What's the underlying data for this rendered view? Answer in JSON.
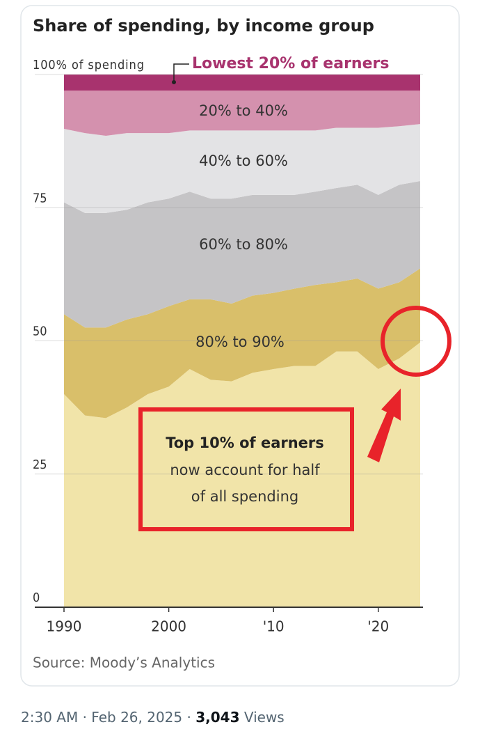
{
  "chart_data": {
    "type": "stacked-area",
    "title": "Share of spending, by income group",
    "source": "Source: Moody’s Analytics",
    "x": [
      1990,
      1992,
      1994,
      1996,
      1998,
      2000,
      2002,
      2004,
      2006,
      2008,
      2010,
      2012,
      2014,
      2016,
      2018,
      2020,
      2022,
      2024
    ],
    "xlim": [
      1990,
      2024
    ],
    "xticks": [
      1990,
      2000,
      {
        "value": 2010,
        "label": "'10"
      },
      {
        "value": 2020,
        "label": "'20"
      }
    ],
    "ylim": [
      0,
      100
    ],
    "yticks": [
      0,
      25,
      50,
      75,
      {
        "value": 100,
        "label": "100% of spending"
      }
    ],
    "grid": true,
    "series": [
      {
        "name": "Top 10% of earners",
        "color": "#f1e4a9",
        "values": [
          40,
          36,
          35.5,
          37.5,
          40,
          41.4,
          44.7,
          42.7,
          42.4,
          44,
          44.7,
          45.3,
          45.3,
          48,
          48,
          44.7,
          46.7,
          49.7
        ]
      },
      {
        "name": "80% to 90%",
        "color": "#d9bf6a",
        "values": [
          15,
          16.5,
          17,
          16.5,
          15,
          15.1,
          13.1,
          15.1,
          14.6,
          14.5,
          14.3,
          14.5,
          15.2,
          13,
          13.7,
          15.1,
          14.3,
          13.9
        ]
      },
      {
        "name": "60% to 80%",
        "color": "#c5c4c6",
        "values": [
          21,
          21.5,
          21.5,
          20.6,
          21,
          20.2,
          20.2,
          18.9,
          19.7,
          18.9,
          18.4,
          17.6,
          17.5,
          17.7,
          17.6,
          17.6,
          18.3,
          16.4
        ]
      },
      {
        "name": "40% to 60%",
        "color": "#e3e3e5",
        "values": [
          13.8,
          15,
          14.5,
          14.4,
          13,
          12.3,
          11.5,
          12.8,
          12.8,
          12.1,
          12.1,
          12.1,
          11.5,
          11.3,
          10.7,
          12.6,
          11,
          10.7
        ]
      },
      {
        "name": "20% to 40%",
        "color": "#d491ae",
        "values": [
          7.2,
          8,
          8.5,
          8,
          8,
          8,
          7.5,
          7.5,
          7.5,
          7.5,
          7.5,
          7.5,
          7.5,
          7,
          7,
          7,
          6.7,
          6.3
        ]
      },
      {
        "name": "Lowest 20% of earners",
        "color": "#a8336e",
        "values": [
          3,
          3,
          3,
          3,
          3,
          3,
          3,
          3,
          3,
          3,
          3,
          3,
          3,
          3,
          3,
          3,
          3,
          3
        ]
      }
    ],
    "annotation": [
      "now account for half",
      "of all spending"
    ]
  },
  "tweet": {
    "time": "2:30 AM",
    "separator": "·",
    "date": "Feb 26, 2025",
    "views": "3,043",
    "views_label": "Views"
  }
}
